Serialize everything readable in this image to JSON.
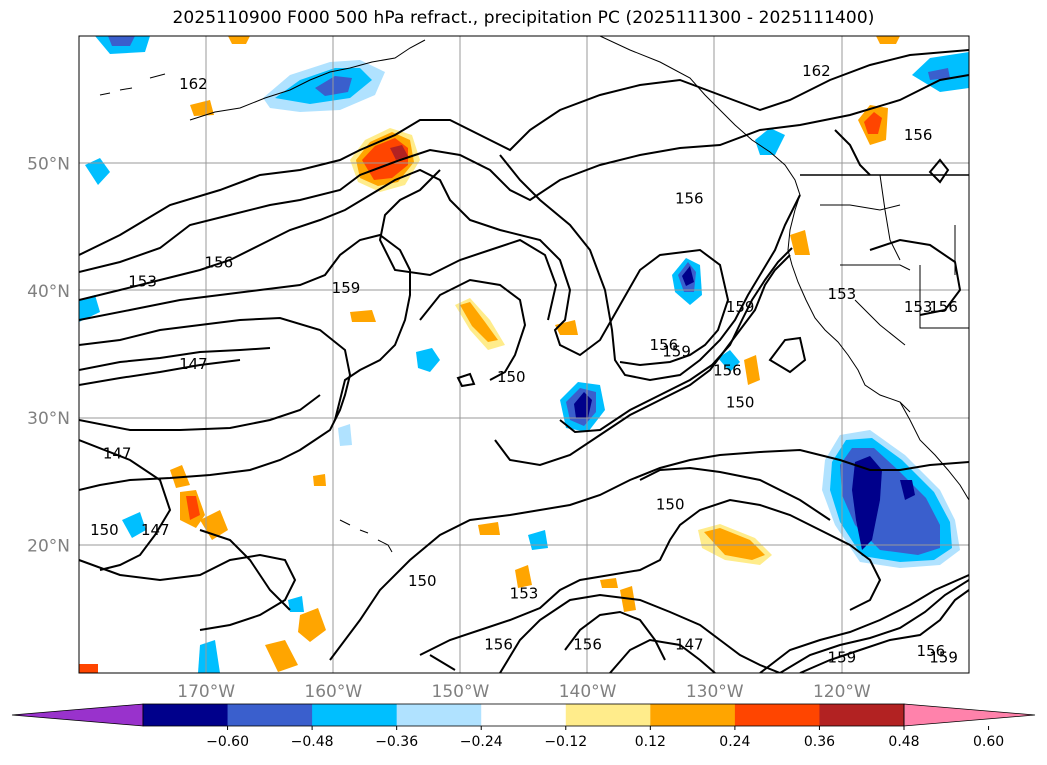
{
  "title": "2025110900 F000 500 hPa refract., precipitation PC (2025111300 - 2025111400)",
  "map": {
    "lat_labels": [
      {
        "text": "50°N",
        "lat": 50
      },
      {
        "text": "40°N",
        "lat": 40
      },
      {
        "text": "30°N",
        "lat": 30
      },
      {
        "text": "20°N",
        "lat": 20
      }
    ],
    "lon_labels": [
      {
        "text": "170°W",
        "lon": -170
      },
      {
        "text": "160°W",
        "lon": -160
      },
      {
        "text": "150°W",
        "lon": -150
      },
      {
        "text": "140°W",
        "lon": -140
      },
      {
        "text": "130°W",
        "lon": -130
      },
      {
        "text": "120°W",
        "lon": -120
      }
    ],
    "extent": {
      "lon_min": -180,
      "lon_max": -110,
      "lat_min": 10,
      "lat_max": 60
    },
    "contour_labels": [
      {
        "text": "162",
        "lon": -171,
        "lat": 56
      },
      {
        "text": "162",
        "lon": -122,
        "lat": 57
      },
      {
        "text": "156",
        "lon": -114,
        "lat": 52
      },
      {
        "text": "156",
        "lon": -132,
        "lat": 47
      },
      {
        "text": "153",
        "lon": -175,
        "lat": 40.5
      },
      {
        "text": "156",
        "lon": -169,
        "lat": 42
      },
      {
        "text": "159",
        "lon": -159,
        "lat": 40
      },
      {
        "text": "147",
        "lon": -171,
        "lat": 34
      },
      {
        "text": "150",
        "lon": -146,
        "lat": 33
      },
      {
        "text": "159",
        "lon": -128,
        "lat": 38.5
      },
      {
        "text": "156",
        "lon": -134,
        "lat": 35.5
      },
      {
        "text": "159",
        "lon": -133,
        "lat": 35
      },
      {
        "text": "156",
        "lon": -129,
        "lat": 33.5
      },
      {
        "text": "150",
        "lon": -128,
        "lat": 31
      },
      {
        "text": "153",
        "lon": -120,
        "lat": 39.5
      },
      {
        "text": "153",
        "lon": -114,
        "lat": 38.5
      },
      {
        "text": "156",
        "lon": -112,
        "lat": 38.5
      },
      {
        "text": "147",
        "lon": -177,
        "lat": 27
      },
      {
        "text": "150",
        "lon": -178,
        "lat": 21
      },
      {
        "text": "147",
        "lon": -174,
        "lat": 21
      },
      {
        "text": "150",
        "lon": -133.5,
        "lat": 23
      },
      {
        "text": "150",
        "lon": -153,
        "lat": 17
      },
      {
        "text": "153",
        "lon": -145,
        "lat": 16
      },
      {
        "text": "156",
        "lon": -147,
        "lat": 12
      },
      {
        "text": "156",
        "lon": -140,
        "lat": 12
      },
      {
        "text": "147",
        "lon": -132,
        "lat": 12
      },
      {
        "text": "159",
        "lon": -120,
        "lat": 11
      },
      {
        "text": "156",
        "lon": -113,
        "lat": 11.5
      },
      {
        "text": "159",
        "lon": -112,
        "lat": 11
      }
    ]
  },
  "colorbar": {
    "ticks": [
      "−0.60",
      "−0.48",
      "−0.36",
      "−0.24",
      "−0.12",
      "0.12",
      "0.24",
      "0.36",
      "0.48",
      "0.60"
    ],
    "colors": [
      "#9932cc",
      "#00008b",
      "#3a5fcd",
      "#00bfff",
      "#b0e2ff",
      "#ffffff",
      "#ffec8b",
      "#ffa500",
      "#ff4500",
      "#b22222",
      "#ff82ab"
    ]
  }
}
